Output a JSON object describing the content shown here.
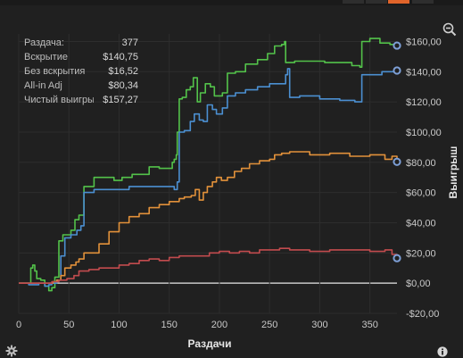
{
  "stats": [
    {
      "label": "Раздача:",
      "value": "377"
    },
    {
      "label": "Вскрытие",
      "value": "$140,75"
    },
    {
      "label": "Без вскрытия",
      "value": "$16,52"
    },
    {
      "label": "All-in Adj",
      "value": "$80,34"
    },
    {
      "label": "Чистый выигрыш",
      "value": "$157,27"
    }
  ],
  "icons": {
    "zoom": "zoom-out-icon",
    "settings": "gear-icon",
    "info": "info-icon"
  },
  "chart_data": {
    "type": "line",
    "xlabel": "Раздачи",
    "ylabel": "Выигрыш",
    "xlim": [
      0,
      377
    ],
    "ylim": [
      -20,
      165
    ],
    "x_ticks": [
      0,
      50,
      100,
      150,
      200,
      250,
      300,
      350
    ],
    "y_ticks": [
      -20,
      0,
      20,
      40,
      60,
      80,
      100,
      120,
      140,
      160
    ],
    "y_tick_labels": [
      "-$20,00",
      "$0,00",
      "$20,00",
      "$40,00",
      "$60,00",
      "$80,00",
      "$100,00",
      "$120,00",
      "$140,00",
      "$160,00"
    ],
    "grid": true,
    "series": [
      {
        "color": "#53c24a",
        "points": [
          [
            0,
            0
          ],
          [
            8,
            0
          ],
          [
            12,
            10
          ],
          [
            14,
            12
          ],
          [
            16,
            8
          ],
          [
            18,
            3
          ],
          [
            22,
            2
          ],
          [
            26,
            -2
          ],
          [
            30,
            -5
          ],
          [
            33,
            -3
          ],
          [
            36,
            4
          ],
          [
            40,
            28
          ],
          [
            44,
            32
          ],
          [
            52,
            35
          ],
          [
            56,
            42
          ],
          [
            60,
            45
          ],
          [
            65,
            64
          ],
          [
            75,
            70
          ],
          [
            85,
            70
          ],
          [
            95,
            68
          ],
          [
            103,
            70
          ],
          [
            113,
            72
          ],
          [
            123,
            72
          ],
          [
            130,
            77
          ],
          [
            140,
            76
          ],
          [
            153,
            80
          ],
          [
            155,
            82
          ],
          [
            157,
            85
          ],
          [
            158,
            100
          ],
          [
            160,
            122
          ],
          [
            163,
            123
          ],
          [
            167,
            128
          ],
          [
            171,
            130
          ],
          [
            174,
            136
          ],
          [
            178,
            120
          ],
          [
            181,
            126
          ],
          [
            186,
            132
          ],
          [
            191,
            130
          ],
          [
            195,
            124
          ],
          [
            203,
            126
          ],
          [
            208,
            139
          ],
          [
            216,
            140
          ],
          [
            226,
            145
          ],
          [
            238,
            148
          ],
          [
            248,
            152
          ],
          [
            255,
            157
          ],
          [
            262,
            158
          ],
          [
            265,
            160
          ],
          [
            266,
            146
          ],
          [
            275,
            147
          ],
          [
            290,
            147
          ],
          [
            305,
            146
          ],
          [
            320,
            146
          ],
          [
            332,
            144
          ],
          [
            340,
            143
          ],
          [
            342,
            160
          ],
          [
            350,
            162
          ],
          [
            360,
            159
          ],
          [
            370,
            158
          ],
          [
            377,
            157.27
          ]
        ]
      },
      {
        "color": "#4b8fd1",
        "points": [
          [
            0,
            0
          ],
          [
            10,
            -1
          ],
          [
            20,
            0
          ],
          [
            26,
            -2
          ],
          [
            30,
            -1
          ],
          [
            33,
            0
          ],
          [
            38,
            2
          ],
          [
            42,
            18
          ],
          [
            46,
            30
          ],
          [
            52,
            32
          ],
          [
            58,
            35
          ],
          [
            62,
            38
          ],
          [
            65,
            60
          ],
          [
            75,
            62
          ],
          [
            90,
            62
          ],
          [
            110,
            64
          ],
          [
            130,
            64
          ],
          [
            150,
            64
          ],
          [
            155,
            62
          ],
          [
            158,
            67
          ],
          [
            160,
            100
          ],
          [
            165,
            101
          ],
          [
            171,
            107
          ],
          [
            175,
            112
          ],
          [
            180,
            108
          ],
          [
            184,
            107
          ],
          [
            188,
            118
          ],
          [
            193,
            115
          ],
          [
            197,
            112
          ],
          [
            203,
            116
          ],
          [
            208,
            124
          ],
          [
            216,
            126
          ],
          [
            226,
            128
          ],
          [
            238,
            130
          ],
          [
            250,
            132
          ],
          [
            262,
            132
          ],
          [
            266,
            138
          ],
          [
            268,
            142
          ],
          [
            270,
            123
          ],
          [
            280,
            124
          ],
          [
            300,
            122
          ],
          [
            320,
            121
          ],
          [
            335,
            120
          ],
          [
            340,
            120
          ],
          [
            342,
            138
          ],
          [
            352,
            138
          ],
          [
            362,
            140
          ],
          [
            370,
            140
          ],
          [
            377,
            140.75
          ]
        ]
      },
      {
        "color": "#e2913a",
        "points": [
          [
            0,
            0
          ],
          [
            20,
            0
          ],
          [
            34,
            1
          ],
          [
            38,
            2
          ],
          [
            42,
            5
          ],
          [
            46,
            10
          ],
          [
            52,
            12
          ],
          [
            57,
            14
          ],
          [
            60,
            16
          ],
          [
            65,
            20
          ],
          [
            70,
            20
          ],
          [
            80,
            26
          ],
          [
            90,
            34
          ],
          [
            100,
            40
          ],
          [
            110,
            44
          ],
          [
            120,
            46
          ],
          [
            130,
            50
          ],
          [
            140,
            52
          ],
          [
            150,
            54
          ],
          [
            155,
            54
          ],
          [
            160,
            56
          ],
          [
            165,
            57
          ],
          [
            172,
            58
          ],
          [
            176,
            62
          ],
          [
            180,
            55
          ],
          [
            184,
            60
          ],
          [
            188,
            64
          ],
          [
            193,
            67
          ],
          [
            197,
            70
          ],
          [
            202,
            68
          ],
          [
            208,
            70
          ],
          [
            215,
            74
          ],
          [
            222,
            76
          ],
          [
            230,
            79
          ],
          [
            240,
            81
          ],
          [
            250,
            82
          ],
          [
            255,
            85
          ],
          [
            262,
            86
          ],
          [
            270,
            87
          ],
          [
            290,
            85
          ],
          [
            310,
            86
          ],
          [
            330,
            84
          ],
          [
            350,
            85
          ],
          [
            365,
            82
          ],
          [
            372,
            84
          ],
          [
            377,
            80.34
          ]
        ]
      },
      {
        "color": "#c24b4e",
        "points": [
          [
            0,
            0
          ],
          [
            20,
            0
          ],
          [
            33,
            1
          ],
          [
            40,
            2
          ],
          [
            48,
            3
          ],
          [
            55,
            5
          ],
          [
            60,
            8
          ],
          [
            70,
            9
          ],
          [
            80,
            10
          ],
          [
            90,
            10
          ],
          [
            100,
            12
          ],
          [
            110,
            13
          ],
          [
            120,
            15
          ],
          [
            130,
            16
          ],
          [
            140,
            15
          ],
          [
            150,
            17
          ],
          [
            160,
            18
          ],
          [
            170,
            18
          ],
          [
            180,
            18
          ],
          [
            190,
            20
          ],
          [
            200,
            21
          ],
          [
            210,
            20
          ],
          [
            220,
            21
          ],
          [
            230,
            20
          ],
          [
            240,
            22
          ],
          [
            250,
            22
          ],
          [
            260,
            23
          ],
          [
            270,
            22
          ],
          [
            290,
            21
          ],
          [
            310,
            22
          ],
          [
            330,
            22
          ],
          [
            350,
            21
          ],
          [
            365,
            22
          ],
          [
            372,
            19
          ],
          [
            377,
            16.52
          ]
        ]
      }
    ],
    "endpoint_markers": true
  }
}
